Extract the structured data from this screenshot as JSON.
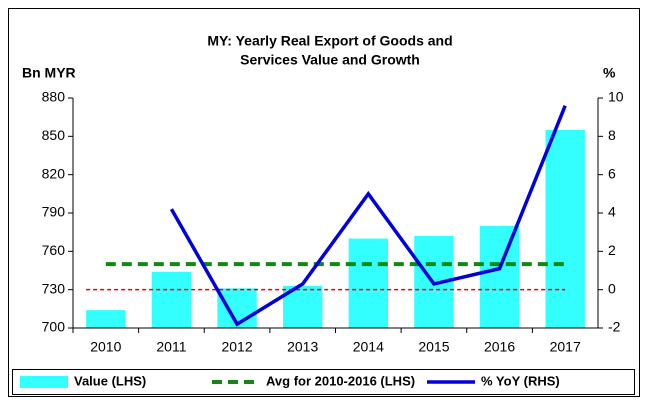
{
  "chart_data": {
    "type": "bar-line",
    "title": [
      "MY: Yearly Real Export of Goods and",
      "Services Value and Growth"
    ],
    "y_label": "Bn MYR",
    "y2_label": "%",
    "categories": [
      "2010",
      "2011",
      "2012",
      "2013",
      "2014",
      "2015",
      "2016",
      "2017"
    ],
    "series": [
      {
        "name": "Value (LHS)",
        "color": "#33ffff",
        "kind": "bar",
        "values": [
          714,
          744,
          731,
          733,
          770,
          772,
          780,
          855
        ]
      },
      {
        "name": "Avg for 2010-2016 (LHS)",
        "color": "#118811",
        "kind": "dashed-line",
        "values": [
          750,
          750,
          750,
          750,
          750,
          750,
          750,
          750
        ]
      },
      {
        "name": "% YoY (RHS)",
        "color": "#0000dd",
        "kind": "line",
        "axis": "y2",
        "values": [
          null,
          4.2,
          -1.8,
          0.3,
          5.0,
          0.3,
          1.1,
          9.6
        ]
      }
    ],
    "ylim": [
      700,
      880
    ],
    "yticks": [
      700,
      730,
      760,
      790,
      820,
      850,
      880
    ],
    "y2lim": [
      -2,
      10
    ],
    "y2ticks": [
      -2,
      0,
      2,
      4,
      6,
      8,
      10
    ],
    "zero_line_color": "#ee0000"
  }
}
